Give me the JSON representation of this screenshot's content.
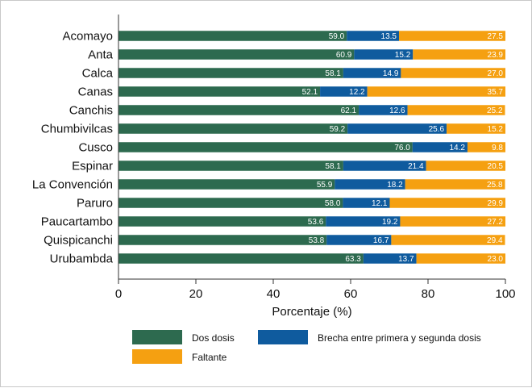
{
  "chart_data": {
    "type": "bar",
    "orientation": "horizontal",
    "stacked": true,
    "title": "",
    "xlabel": "Porcentaje (%)",
    "ylabel": "",
    "xlim": [
      0,
      100
    ],
    "xticks": [
      0,
      20,
      40,
      60,
      80,
      100
    ],
    "grid": false,
    "legend_position": "bottom",
    "categories": [
      "Acomayo",
      "Anta",
      "Calca",
      "Canas",
      "Canchis",
      "Chumbivilcas",
      "Cusco",
      "Espinar",
      "La Convención",
      "Paruro",
      "Paucartambo",
      "Quispicanchi",
      "Urubambda"
    ],
    "series": [
      {
        "name": "Dos dosis",
        "color": "#2d6a4f",
        "values": [
          59.0,
          60.9,
          58.1,
          52.1,
          62.1,
          59.2,
          76.0,
          58.1,
          55.9,
          58.0,
          53.6,
          53.8,
          63.3
        ],
        "labels": [
          "59.0",
          "60.9",
          "58.1",
          "52.1",
          "62.1",
          "59.2",
          "76.0",
          "58.1",
          "55.9",
          "58.0",
          "53.6",
          "53.8",
          "63.3"
        ]
      },
      {
        "name": "Brecha entre primera y segunda dosis",
        "color": "#0f5b9e",
        "values": [
          13.5,
          15.2,
          14.9,
          12.2,
          12.6,
          25.6,
          14.2,
          21.4,
          18.2,
          12.1,
          19.2,
          16.7,
          13.7
        ],
        "labels": [
          "13.5",
          "15.2",
          "14.9",
          "12.2",
          "12.6",
          "25.6",
          "14.2",
          "21.4",
          "18.2",
          "12.1",
          "19.2",
          "16.7",
          "13.7"
        ]
      },
      {
        "name": "Faltante",
        "color": "#f5a011",
        "values": [
          27.5,
          23.9,
          27.0,
          35.7,
          25.2,
          15.2,
          9.8,
          20.5,
          25.8,
          29.9,
          27.2,
          29.4,
          23.0
        ],
        "labels": [
          "27.5",
          "23.9",
          "27.0",
          "35.7",
          "25.2",
          "15.2",
          "9.8",
          "20.5",
          "25.8",
          "29.9",
          "27.2",
          "29.4",
          "23.0"
        ]
      }
    ]
  }
}
